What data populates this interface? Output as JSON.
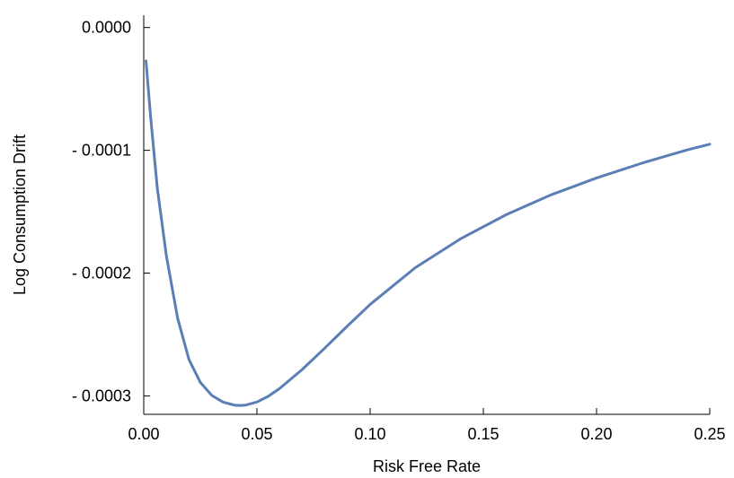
{
  "chart_data": {
    "type": "line",
    "title": "",
    "xlabel": "Risk Free Rate",
    "ylabel": "Log Consumption Drift",
    "xlim": [
      0.0,
      0.25
    ],
    "ylim": [
      -0.000315,
      1e-05
    ],
    "x_ticks": [
      0.0,
      0.05,
      0.1,
      0.15,
      0.2,
      0.25
    ],
    "x_tick_labels": [
      "0.00",
      "0.05",
      "0.10",
      "0.15",
      "0.20",
      "0.25"
    ],
    "y_ticks": [
      0.0,
      -0.0001,
      -0.0002,
      -0.0003
    ],
    "y_tick_labels": [
      "0.0000",
      "- 0.0001",
      "- 0.0002",
      "- 0.0003"
    ],
    "grid": false,
    "series_color": "#5b7fb5",
    "series": [
      {
        "x": [
          0.001,
          0.003,
          0.006,
          0.01,
          0.015,
          0.02,
          0.025,
          0.03,
          0.035,
          0.04,
          0.0425,
          0.045,
          0.05,
          0.055,
          0.06,
          0.07,
          0.08,
          0.09,
          0.1,
          0.12,
          0.14,
          0.16,
          0.18,
          0.2,
          0.22,
          0.24,
          0.25
        ],
        "y": [
          -2.72e-05,
          -7.2e-05,
          -0.000131,
          -0.000186,
          -0.000237,
          -0.0002705,
          -0.000289,
          -0.0002995,
          -0.000305,
          -0.0003075,
          -0.0003078,
          -0.0003075,
          -0.000305,
          -0.0003003,
          -0.000294,
          -0.0002785,
          -0.000261,
          -0.000243,
          -0.0002255,
          -0.0001955,
          -0.000172,
          -0.0001525,
          -0.0001362,
          -0.0001225,
          -0.0001105,
          -9.97e-05,
          -9.5e-05
        ]
      }
    ]
  }
}
